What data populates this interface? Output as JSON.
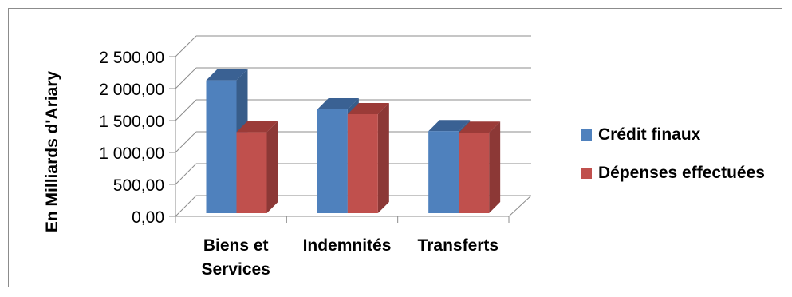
{
  "chart_data": {
    "type": "bar",
    "title": "",
    "xlabel": "",
    "ylabel": "En Milliards d'Ariary",
    "categories": [
      [
        "Biens et",
        "Services"
      ],
      [
        "Indemnités"
      ],
      [
        "Transferts"
      ]
    ],
    "series": [
      {
        "name": "Crédit finaux",
        "values": [
          2080,
          1625,
          1285
        ],
        "color": "#4F81BD",
        "side": "#385D8A",
        "top": "#3A6193"
      },
      {
        "name": "Dépenses effectuées",
        "values": [
          1270,
          1550,
          1260
        ],
        "color": "#C0504D",
        "side": "#8C3836",
        "top": "#9B3B38"
      }
    ],
    "ylim": [
      0,
      2500
    ],
    "yticks": [
      0,
      500,
      1000,
      1500,
      2000,
      2500
    ],
    "ytick_labels": [
      "0,00",
      "500,00",
      "1 000,00",
      "1 500,00",
      "2 000,00",
      "2 500,00"
    ],
    "grid": true,
    "legend": "right"
  }
}
